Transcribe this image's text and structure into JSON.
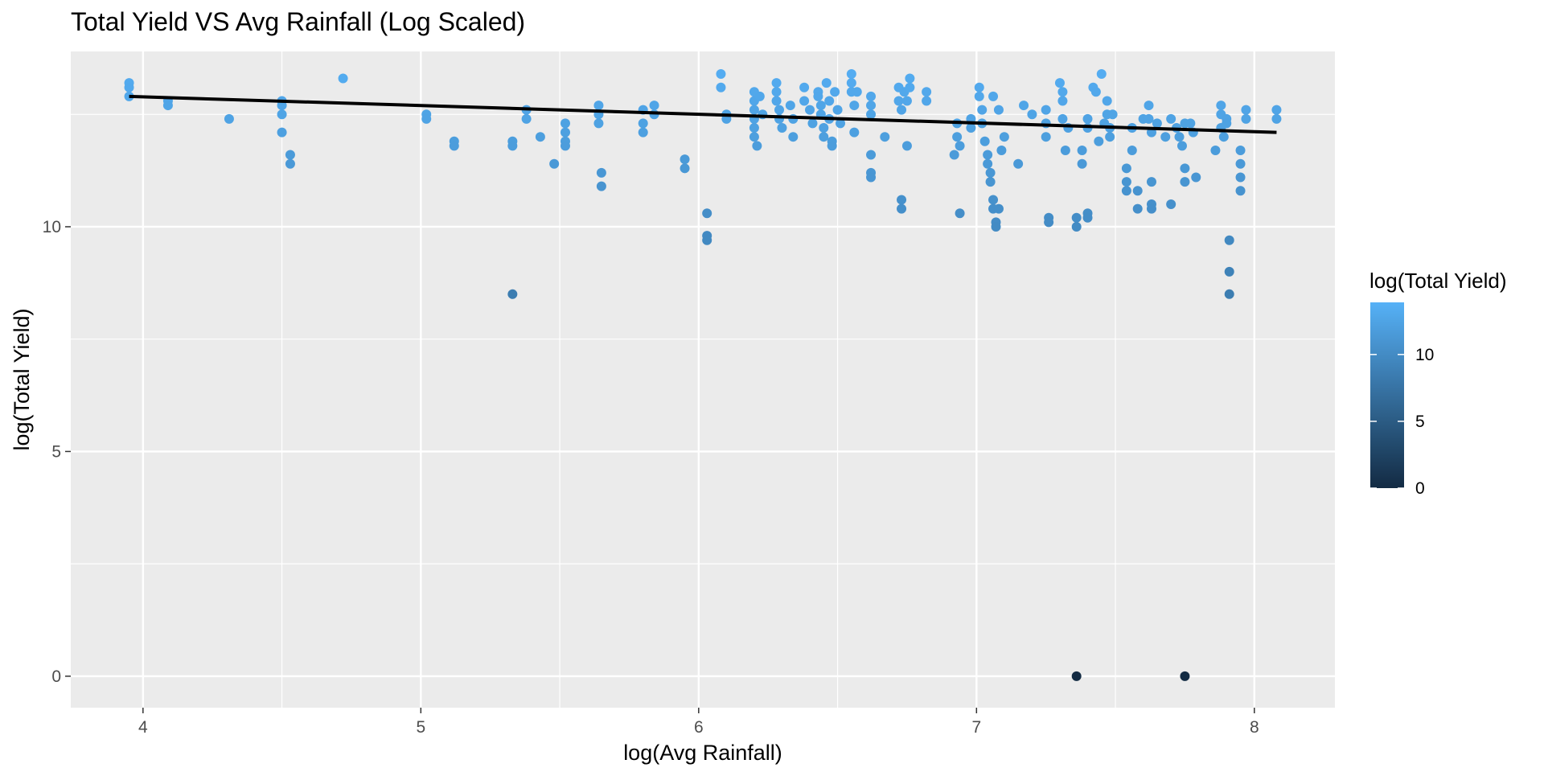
{
  "chart_data": {
    "type": "scatter",
    "title": "Total Yield VS Avg Rainfall (Log Scaled)",
    "xlabel": "log(Avg Rainfall)",
    "ylabel": "log(Total Yield)",
    "xlim": [
      3.74,
      8.29
    ],
    "ylim": [
      -0.7,
      13.9
    ],
    "x_ticks": [
      4,
      5,
      6,
      7,
      8
    ],
    "y_ticks": [
      0,
      5,
      10
    ],
    "grid": true,
    "legend": {
      "title": "log(Total Yield)",
      "placement": "right",
      "type": "colorbar",
      "ticks": [
        0,
        5,
        10
      ],
      "range": [
        0,
        13.9
      ],
      "color_low": "#132b43",
      "color_high": "#56b1f7"
    },
    "trend_line": {
      "x": [
        3.95,
        8.08
      ],
      "y": [
        12.9,
        12.1
      ],
      "color": "#000000"
    },
    "points": [
      [
        3.95,
        13.2
      ],
      [
        3.95,
        13.1
      ],
      [
        3.95,
        12.9
      ],
      [
        4.09,
        12.8
      ],
      [
        4.09,
        12.7
      ],
      [
        4.31,
        12.4
      ],
      [
        4.5,
        12.8
      ],
      [
        4.5,
        12.7
      ],
      [
        4.5,
        12.5
      ],
      [
        4.5,
        12.1
      ],
      [
        4.53,
        11.6
      ],
      [
        4.53,
        11.4
      ],
      [
        4.72,
        13.3
      ],
      [
        5.02,
        12.5
      ],
      [
        5.02,
        12.4
      ],
      [
        5.12,
        11.9
      ],
      [
        5.12,
        11.8
      ],
      [
        5.33,
        11.9
      ],
      [
        5.33,
        11.8
      ],
      [
        5.33,
        8.5
      ],
      [
        5.38,
        12.6
      ],
      [
        5.38,
        12.4
      ],
      [
        5.43,
        12.0
      ],
      [
        5.48,
        11.4
      ],
      [
        5.52,
        12.3
      ],
      [
        5.52,
        12.1
      ],
      [
        5.52,
        11.9
      ],
      [
        5.52,
        11.8
      ],
      [
        5.64,
        12.7
      ],
      [
        5.64,
        12.5
      ],
      [
        5.64,
        12.3
      ],
      [
        5.65,
        11.2
      ],
      [
        5.65,
        10.9
      ],
      [
        5.8,
        12.6
      ],
      [
        5.8,
        12.3
      ],
      [
        5.8,
        12.1
      ],
      [
        5.84,
        12.7
      ],
      [
        5.84,
        12.5
      ],
      [
        5.95,
        11.5
      ],
      [
        5.95,
        11.3
      ],
      [
        6.03,
        10.3
      ],
      [
        6.03,
        9.8
      ],
      [
        6.03,
        9.7
      ],
      [
        6.08,
        13.4
      ],
      [
        6.08,
        13.1
      ],
      [
        6.1,
        12.5
      ],
      [
        6.1,
        12.4
      ],
      [
        6.2,
        13.0
      ],
      [
        6.2,
        12.8
      ],
      [
        6.2,
        12.6
      ],
      [
        6.2,
        12.4
      ],
      [
        6.2,
        12.2
      ],
      [
        6.2,
        12.0
      ],
      [
        6.21,
        11.8
      ],
      [
        6.22,
        12.9
      ],
      [
        6.23,
        12.5
      ],
      [
        6.28,
        13.2
      ],
      [
        6.28,
        13.0
      ],
      [
        6.28,
        12.8
      ],
      [
        6.29,
        12.6
      ],
      [
        6.29,
        12.4
      ],
      [
        6.3,
        12.2
      ],
      [
        6.33,
        12.7
      ],
      [
        6.34,
        12.4
      ],
      [
        6.34,
        12.0
      ],
      [
        6.38,
        13.1
      ],
      [
        6.38,
        12.8
      ],
      [
        6.4,
        12.6
      ],
      [
        6.41,
        12.3
      ],
      [
        6.43,
        13.0
      ],
      [
        6.43,
        12.9
      ],
      [
        6.44,
        12.7
      ],
      [
        6.44,
        12.5
      ],
      [
        6.45,
        12.2
      ],
      [
        6.45,
        12.0
      ],
      [
        6.46,
        13.2
      ],
      [
        6.47,
        12.8
      ],
      [
        6.47,
        12.4
      ],
      [
        6.48,
        11.9
      ],
      [
        6.48,
        11.8
      ],
      [
        6.49,
        13.0
      ],
      [
        6.5,
        12.6
      ],
      [
        6.51,
        12.3
      ],
      [
        6.55,
        13.4
      ],
      [
        6.55,
        13.2
      ],
      [
        6.55,
        13.0
      ],
      [
        6.56,
        12.7
      ],
      [
        6.56,
        12.1
      ],
      [
        6.57,
        13.0
      ],
      [
        6.62,
        12.9
      ],
      [
        6.62,
        12.7
      ],
      [
        6.62,
        12.5
      ],
      [
        6.62,
        11.6
      ],
      [
        6.62,
        11.2
      ],
      [
        6.62,
        11.1
      ],
      [
        6.67,
        12.0
      ],
      [
        6.72,
        13.1
      ],
      [
        6.72,
        12.8
      ],
      [
        6.73,
        12.6
      ],
      [
        6.73,
        10.6
      ],
      [
        6.73,
        10.4
      ],
      [
        6.74,
        13.0
      ],
      [
        6.75,
        12.8
      ],
      [
        6.75,
        11.8
      ],
      [
        6.76,
        13.3
      ],
      [
        6.76,
        13.1
      ],
      [
        6.82,
        13.0
      ],
      [
        6.82,
        12.8
      ],
      [
        6.92,
        11.6
      ],
      [
        6.93,
        12.3
      ],
      [
        6.93,
        12.0
      ],
      [
        6.94,
        11.8
      ],
      [
        6.94,
        10.3
      ],
      [
        6.98,
        12.4
      ],
      [
        6.98,
        12.2
      ],
      [
        7.01,
        13.1
      ],
      [
        7.01,
        12.9
      ],
      [
        7.02,
        12.6
      ],
      [
        7.02,
        12.3
      ],
      [
        7.03,
        11.9
      ],
      [
        7.04,
        11.6
      ],
      [
        7.04,
        11.4
      ],
      [
        7.05,
        11.2
      ],
      [
        7.05,
        11.0
      ],
      [
        7.06,
        12.9
      ],
      [
        7.06,
        10.6
      ],
      [
        7.06,
        10.4
      ],
      [
        7.07,
        10.1
      ],
      [
        7.07,
        10.0
      ],
      [
        7.08,
        12.6
      ],
      [
        7.08,
        10.4
      ],
      [
        7.09,
        11.7
      ],
      [
        7.1,
        12.0
      ],
      [
        7.15,
        11.4
      ],
      [
        7.17,
        12.7
      ],
      [
        7.2,
        12.5
      ],
      [
        7.25,
        12.6
      ],
      [
        7.25,
        12.3
      ],
      [
        7.25,
        12.0
      ],
      [
        7.26,
        10.2
      ],
      [
        7.26,
        10.1
      ],
      [
        7.3,
        13.2
      ],
      [
        7.31,
        13.0
      ],
      [
        7.31,
        12.8
      ],
      [
        7.31,
        12.4
      ],
      [
        7.32,
        11.7
      ],
      [
        7.33,
        12.2
      ],
      [
        7.36,
        10.2
      ],
      [
        7.36,
        10.0
      ],
      [
        7.36,
        0.0
      ],
      [
        7.38,
        11.7
      ],
      [
        7.38,
        11.4
      ],
      [
        7.4,
        12.4
      ],
      [
        7.4,
        12.2
      ],
      [
        7.4,
        10.3
      ],
      [
        7.4,
        10.2
      ],
      [
        7.42,
        13.1
      ],
      [
        7.43,
        13.0
      ],
      [
        7.44,
        11.9
      ],
      [
        7.45,
        13.4
      ],
      [
        7.46,
        12.3
      ],
      [
        7.47,
        12.8
      ],
      [
        7.47,
        12.5
      ],
      [
        7.48,
        12.2
      ],
      [
        7.48,
        12.0
      ],
      [
        7.49,
        12.5
      ],
      [
        7.54,
        11.3
      ],
      [
        7.54,
        11.0
      ],
      [
        7.54,
        10.8
      ],
      [
        7.56,
        12.2
      ],
      [
        7.56,
        11.7
      ],
      [
        7.58,
        10.8
      ],
      [
        7.58,
        10.4
      ],
      [
        7.6,
        12.4
      ],
      [
        7.62,
        12.7
      ],
      [
        7.62,
        12.4
      ],
      [
        7.63,
        12.1
      ],
      [
        7.63,
        11.0
      ],
      [
        7.63,
        10.5
      ],
      [
        7.63,
        10.4
      ],
      [
        7.65,
        12.3
      ],
      [
        7.68,
        12.0
      ],
      [
        7.7,
        12.4
      ],
      [
        7.7,
        10.5
      ],
      [
        7.72,
        12.2
      ],
      [
        7.73,
        12.0
      ],
      [
        7.74,
        11.8
      ],
      [
        7.75,
        12.3
      ],
      [
        7.75,
        11.3
      ],
      [
        7.75,
        11.0
      ],
      [
        7.75,
        0.0
      ],
      [
        7.77,
        12.3
      ],
      [
        7.78,
        12.1
      ],
      [
        7.79,
        11.1
      ],
      [
        7.86,
        11.7
      ],
      [
        7.88,
        12.7
      ],
      [
        7.88,
        12.5
      ],
      [
        7.88,
        12.2
      ],
      [
        7.89,
        12.0
      ],
      [
        7.9,
        12.4
      ],
      [
        7.9,
        12.3
      ],
      [
        7.91,
        9.7
      ],
      [
        7.91,
        9.0
      ],
      [
        7.91,
        8.5
      ],
      [
        7.95,
        11.7
      ],
      [
        7.95,
        11.4
      ],
      [
        7.95,
        11.1
      ],
      [
        7.95,
        10.8
      ],
      [
        7.97,
        12.6
      ],
      [
        7.97,
        12.4
      ],
      [
        8.08,
        12.6
      ],
      [
        8.08,
        12.4
      ]
    ]
  }
}
